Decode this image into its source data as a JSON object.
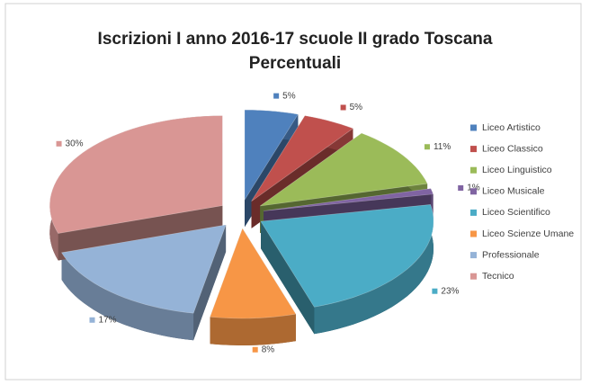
{
  "chart_data": {
    "type": "pie",
    "title": "Iscrizioni I anno 2016-17 scuole II grado Toscana",
    "subtitle": "Percentuali",
    "categories": [
      "Liceo Artistico",
      "Liceo Classico",
      "Liceo Linguistico",
      "Liceo Musicale",
      "Liceo Scientifico",
      "Liceo Scienze Umane",
      "Professionale",
      "Tecnico"
    ],
    "values": [
      5,
      5,
      11,
      1,
      23,
      8,
      17,
      30
    ],
    "value_labels": [
      "5%",
      "5%",
      "11%",
      "1%",
      "23%",
      "8%",
      "17%",
      "30%"
    ],
    "colors": [
      "#4f81bd",
      "#c0504d",
      "#9bbb59",
      "#8064a2",
      "#4bacc6",
      "#f79646",
      "#95b3d7",
      "#d99694"
    ],
    "legend": "right"
  }
}
